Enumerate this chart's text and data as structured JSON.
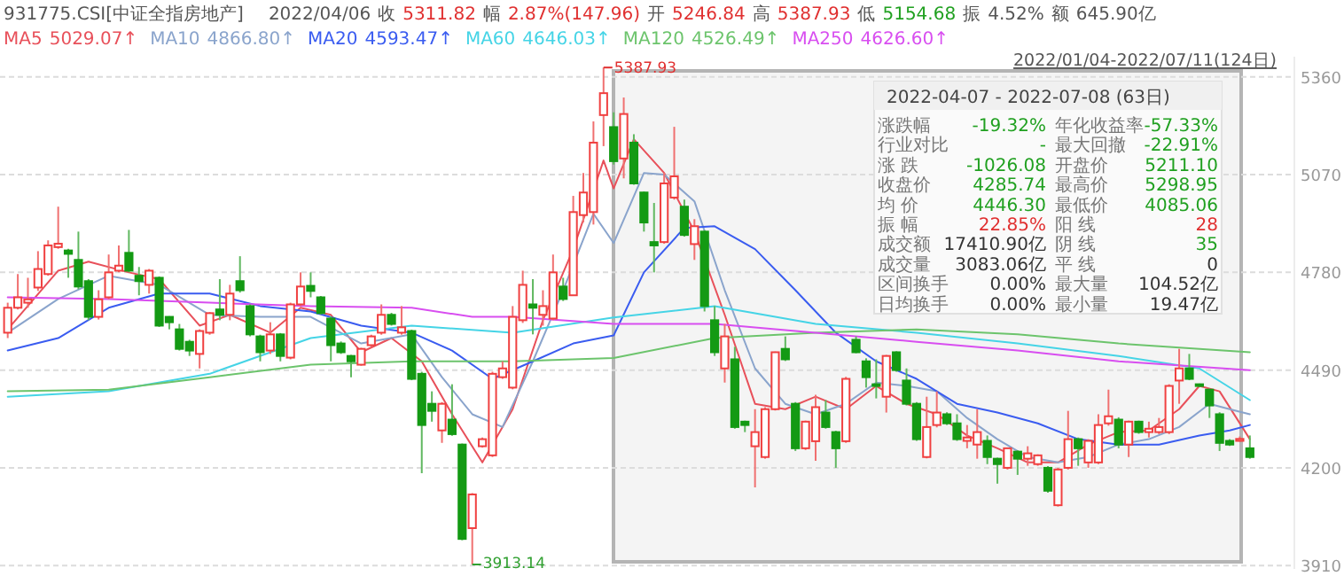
{
  "chart_data": {
    "type": "candlestick",
    "title": "931775.CSI[中证全指房地产]",
    "subtitle": "2022/04/06 收 5311.82 幅 2.87%(147.96) 开 5246.84 高 5387.93 低 5154.68 振 4.52% 额 645.90亿",
    "categories": [
      null,
      null,
      null,
      null,
      null,
      null,
      null,
      null,
      null,
      null,
      null,
      null,
      null,
      null,
      null,
      null,
      null,
      null,
      null,
      null,
      null,
      null,
      null,
      null,
      null,
      null,
      null,
      null,
      null,
      null,
      null,
      null,
      null,
      null,
      null,
      null,
      null,
      null,
      null,
      null,
      null,
      null,
      null,
      null,
      null,
      null,
      null,
      null,
      null,
      null,
      null,
      null,
      null,
      null,
      null,
      null,
      null,
      null,
      null,
      null,
      null,
      null,
      null,
      null,
      null,
      null,
      null,
      null,
      null,
      null,
      null,
      null,
      null,
      null,
      null,
      null,
      null,
      null,
      null,
      null,
      null,
      null,
      null,
      null,
      null,
      null,
      null,
      null,
      null,
      null,
      null,
      null,
      null,
      null,
      null,
      null,
      null,
      null,
      null,
      null,
      null,
      null,
      null,
      null,
      null,
      null,
      null,
      null,
      null,
      null,
      null,
      null,
      null,
      null,
      null,
      null,
      null,
      null,
      null,
      null,
      null,
      null,
      null,
      null
    ],
    "ohlc": [
      [
        4601,
        4690,
        4585,
        4675
      ],
      [
        4675,
        4775,
        4670,
        4706
      ],
      [
        4690,
        4764,
        4675,
        4700
      ],
      [
        4735,
        4843,
        4725,
        4790
      ],
      [
        4775,
        4875,
        4770,
        4860
      ],
      [
        4855,
        4975,
        4850,
        4865
      ],
      [
        4845,
        4850,
        4764,
        4835
      ],
      [
        4817,
        4901,
        4730,
        4738
      ],
      [
        4754,
        4760,
        4638,
        4648
      ],
      [
        4648,
        4727,
        4640,
        4700
      ],
      [
        4706,
        4833,
        4700,
        4780
      ],
      [
        4785,
        4860,
        4780,
        4800
      ],
      [
        4838,
        4906,
        4780,
        4785
      ],
      [
        4770,
        4796,
        4712,
        4754
      ],
      [
        4743,
        4790,
        4717,
        4785
      ],
      [
        4764,
        4768,
        4618,
        4622
      ],
      [
        4648,
        4650,
        4611,
        4632
      ],
      [
        4611,
        4627,
        4548,
        4553
      ],
      [
        4574,
        4580,
        4532,
        4548
      ],
      [
        4538,
        4611,
        4495,
        4606
      ],
      [
        4601,
        4662,
        4595,
        4659
      ],
      [
        4670,
        4760,
        4638,
        4654
      ],
      [
        4654,
        4743,
        4638,
        4717
      ],
      [
        4754,
        4828,
        4720,
        4727
      ],
      [
        4680,
        4685,
        4590,
        4596
      ],
      [
        4590,
        4595,
        4516,
        4543
      ],
      [
        4548,
        4632,
        4538,
        4596
      ],
      [
        4596,
        4600,
        4516,
        4532
      ],
      [
        4527,
        4690,
        4522,
        4685
      ],
      [
        4685,
        4780,
        4680,
        4738
      ],
      [
        4740,
        4780,
        4706,
        4725
      ],
      [
        4706,
        4710,
        4655,
        4659
      ],
      [
        4643,
        4650,
        4516,
        4564
      ],
      [
        4569,
        4575,
        4538,
        4543
      ],
      [
        4532,
        4535,
        4469,
        4516
      ],
      [
        4506,
        4556,
        4503,
        4553
      ],
      [
        4564,
        4595,
        4560,
        4590
      ],
      [
        4601,
        4685,
        4595,
        4654
      ],
      [
        4654,
        4660,
        4622,
        4627
      ],
      [
        4601,
        4680,
        4595,
        4617
      ],
      [
        4606,
        4610,
        4460,
        4464
      ],
      [
        4479,
        4485,
        4184,
        4327
      ],
      [
        4390,
        4427,
        4337,
        4369
      ],
      [
        4311,
        4395,
        4274,
        4390
      ],
      [
        4343,
        4448,
        4295,
        4300
      ],
      [
        4269,
        4272,
        3985,
        3989
      ],
      [
        4021,
        4125,
        3913.14,
        4121
      ],
      [
        4264,
        4290,
        4260,
        4285
      ],
      [
        4237,
        4485,
        4232,
        4479
      ],
      [
        4469,
        4516,
        4464,
        4495
      ],
      [
        4438,
        4680,
        4433,
        4648
      ],
      [
        4638,
        4785,
        4630,
        4743
      ],
      [
        4685,
        4760,
        4596,
        4675
      ],
      [
        4654,
        4727,
        4622,
        4680
      ],
      [
        4643,
        4833,
        4638,
        4780
      ],
      [
        4738,
        4764,
        4695,
        4701
      ],
      [
        4712,
        5007,
        4710,
        4959
      ],
      [
        4950,
        5075,
        4928,
        5017
      ],
      [
        4959,
        5228,
        4922,
        5165
      ],
      [
        5246.84,
        5387.93,
        5154.68,
        5311.82
      ],
      [
        5211.1,
        5255,
        5100,
        5110
      ],
      [
        5118,
        5298.95,
        5059,
        5250
      ],
      [
        5165,
        5190,
        5040,
        5044
      ],
      [
        5017,
        5020,
        4901,
        4928
      ],
      [
        4870,
        4986,
        4780,
        4860
      ],
      [
        4870,
        5075,
        4865,
        5044
      ],
      [
        5002,
        5212,
        4996,
        5065
      ],
      [
        4975,
        4996,
        4886,
        4891
      ],
      [
        4864,
        4938,
        4817,
        4917
      ],
      [
        4901,
        4905,
        4664,
        4680
      ],
      [
        4638,
        4680,
        4532,
        4543
      ],
      [
        4495,
        4627,
        4453,
        4590
      ],
      [
        4522,
        4559,
        4316,
        4321
      ],
      [
        4337,
        4340,
        4306,
        4327
      ],
      [
        4264,
        4374,
        4142,
        4306
      ],
      [
        4232,
        4380,
        4227,
        4374
      ],
      [
        4374,
        4545,
        4370,
        4543
      ],
      [
        4553,
        4590,
        4517,
        4522
      ],
      [
        4390,
        4395,
        4250,
        4258
      ],
      [
        4258,
        4340,
        4253,
        4337
      ],
      [
        4279,
        4417,
        4221,
        4380
      ],
      [
        4364,
        4401,
        4316,
        4321
      ],
      [
        4306,
        4310,
        4200,
        4258
      ],
      [
        4279,
        4470,
        4274,
        4464
      ],
      [
        4580,
        4590,
        4540,
        4543
      ],
      [
        4516,
        4525,
        4438,
        4469
      ],
      [
        4448,
        4522,
        4406,
        4443
      ],
      [
        4411,
        4535,
        4364,
        4532
      ],
      [
        4543,
        4546,
        4485,
        4490
      ],
      [
        4459,
        4495,
        4385,
        4390
      ],
      [
        4390,
        4395,
        4280,
        4285
      ],
      [
        4232,
        4411,
        4228,
        4321
      ],
      [
        4327,
        4427,
        4320,
        4364
      ],
      [
        4359,
        4365,
        4327,
        4332
      ],
      [
        4332,
        4359,
        4280,
        4285
      ],
      [
        4280,
        4327,
        4258,
        4290
      ],
      [
        4269,
        4374,
        4227,
        4306
      ],
      [
        4280,
        4296,
        4211,
        4232
      ],
      [
        4227,
        4230,
        4153,
        4211
      ],
      [
        4200,
        4260,
        4195,
        4258
      ],
      [
        4248,
        4252,
        4179,
        4227
      ],
      [
        4227,
        4264,
        4206,
        4243
      ],
      [
        4211,
        4240,
        4206,
        4237
      ],
      [
        4200,
        4205,
        4126,
        4132
      ],
      [
        4089,
        4200,
        4085.06,
        4195
      ],
      [
        4200,
        4369,
        4195,
        4285
      ],
      [
        4285,
        4290,
        4206,
        4258
      ],
      [
        4216,
        4285,
        4200,
        4280
      ],
      [
        4216,
        4359,
        4211,
        4327
      ],
      [
        4332,
        4432,
        4325,
        4353
      ],
      [
        4343,
        4350,
        4258,
        4269
      ],
      [
        4269,
        4340,
        4232,
        4337
      ],
      [
        4337,
        4340,
        4301,
        4306
      ],
      [
        4306,
        4337,
        4290,
        4316
      ],
      [
        4306,
        4348,
        4300,
        4321
      ],
      [
        4306,
        4448,
        4300,
        4443
      ],
      [
        4459,
        4553,
        4390,
        4495
      ],
      [
        4495,
        4538,
        4460,
        4464
      ],
      [
        4448,
        4450,
        4440,
        4443
      ],
      [
        4432,
        4435,
        4348,
        4385
      ],
      [
        4359,
        4365,
        4250,
        4274
      ],
      [
        4280,
        4285,
        4265,
        4269
      ],
      [
        4280,
        4293,
        4278,
        4285.74
      ],
      [
        4258,
        4296,
        4227,
        4232
      ]
    ],
    "series": [
      {
        "name": "MA5",
        "type": "line",
        "color": "#e8505a",
        "values": [
          4611,
          null,
          null,
          null,
          null,
          4785,
          null,
          null,
          4812,
          null,
          null,
          null,
          4780,
          null,
          null,
          4760,
          null,
          null,
          null,
          4622,
          null,
          null,
          4654,
          null,
          null,
          null,
          4601,
          null,
          null,
          4675,
          null,
          null,
          4654,
          null,
          null,
          4543,
          null,
          null,
          4585,
          null,
          null,
          4516,
          null,
          null,
          4359,
          null,
          null,
          4216,
          null,
          null,
          4374,
          null,
          null,
          4638,
          null,
          null,
          4849,
          null,
          null,
          5112,
          5029,
          null,
          5175,
          null,
          null,
          5075,
          null,
          null,
          4901,
          null,
          null,
          4654,
          null,
          null,
          4390,
          null,
          null,
          4374,
          null,
          null,
          4411,
          null,
          null,
          4374,
          null,
          null,
          4443,
          null,
          null,
          4390,
          null,
          null,
          4359,
          null,
          null,
          4296,
          null,
          null,
          4258,
          null,
          null,
          4216,
          null,
          null,
          4216,
          null,
          null,
          4269,
          null,
          null,
          4306,
          null,
          null,
          4311,
          null,
          null,
          4374,
          null,
          4443,
          null,
          4427,
          null,
          null,
          4285
        ]
      },
      {
        "name": "MA10",
        "type": "line",
        "color": "#8aa4cc",
        "values": [
          4601,
          null,
          null,
          null,
          null,
          4701,
          null,
          null,
          null,
          null,
          4770,
          null,
          null,
          null,
          null,
          4743,
          null,
          null,
          null,
          null,
          4654,
          null,
          null,
          null,
          null,
          4648,
          null,
          null,
          null,
          null,
          4648,
          null,
          null,
          null,
          null,
          4569,
          null,
          null,
          null,
          null,
          4596,
          null,
          null,
          4469,
          null,
          null,
          4359,
          null,
          null,
          4321,
          null,
          null,
          4516,
          null,
          null,
          4727,
          null,
          null,
          4954,
          null,
          4867,
          null,
          null,
          5075,
          null,
          5070,
          null,
          null,
          4991,
          null,
          null,
          4727,
          null,
          null,
          4495,
          null,
          null,
          4390,
          null,
          null,
          4359,
          null,
          null,
          4390,
          null,
          null,
          4453,
          null,
          null,
          4443,
          null,
          null,
          4427,
          null,
          null,
          4348,
          null,
          null,
          4285,
          null,
          null,
          4232,
          null,
          null,
          4216,
          null,
          null,
          4232,
          null,
          null,
          4269,
          null,
          null,
          4285,
          null,
          null,
          4321,
          null,
          null,
          4390,
          null,
          4374,
          null,
          4359
        ]
      },
      {
        "name": "MA20",
        "type": "line",
        "color": "#3a5cf0",
        "values": [
          4548,
          null,
          null,
          null,
          null,
          4585,
          null,
          null,
          null,
          null,
          4675,
          null,
          null,
          null,
          null,
          4717,
          null,
          null,
          null,
          null,
          4717,
          null,
          null,
          null,
          null,
          4680,
          null,
          null,
          null,
          null,
          4664,
          null,
          null,
          null,
          null,
          4622,
          null,
          null,
          null,
          null,
          4601,
          null,
          null,
          null,
          4548,
          null,
          null,
          null,
          4464,
          null,
          null,
          null,
          4516,
          null,
          null,
          null,
          4569,
          null,
          null,
          null,
          4593,
          null,
          null,
          4780,
          null,
          null,
          null,
          4912,
          null,
          null,
          4917,
          null,
          null,
          null,
          4849,
          null,
          null,
          null,
          4727,
          null,
          null,
          null,
          4601,
          null,
          null,
          null,
          4516,
          null,
          null,
          null,
          4464,
          null,
          null,
          null,
          4390,
          null,
          null,
          null,
          4364,
          null,
          null,
          null,
          4332,
          null,
          null,
          null,
          4285,
          null,
          null,
          null,
          4269,
          null,
          null,
          null,
          4269,
          null,
          null,
          null,
          4296,
          null,
          null,
          4311,
          null,
          4327
        ]
      },
      {
        "name": "MA60",
        "type": "line",
        "color": "#45d4e6",
        "values": [
          4411,
          null,
          null,
          null,
          null,
          null,
          null,
          null,
          null,
          null,
          4427,
          null,
          null,
          null,
          null,
          null,
          null,
          null,
          null,
          null,
          4479,
          null,
          null,
          null,
          null,
          null,
          null,
          null,
          null,
          null,
          4585,
          null,
          null,
          null,
          null,
          null,
          null,
          null,
          null,
          null,
          4622,
          null,
          null,
          null,
          null,
          null,
          null,
          null,
          null,
          null,
          4601,
          null,
          null,
          null,
          null,
          null,
          null,
          null,
          null,
          null,
          4646,
          null,
          null,
          null,
          null,
          null,
          null,
          null,
          null,
          null,
          4680,
          null,
          null,
          null,
          null,
          null,
          null,
          null,
          null,
          null,
          4627,
          null,
          null,
          null,
          null,
          null,
          null,
          null,
          null,
          null,
          4601,
          null,
          null,
          null,
          null,
          null,
          null,
          null,
          null,
          null,
          4569,
          null,
          null,
          null,
          null,
          null,
          null,
          null,
          null,
          null,
          4532,
          null,
          null,
          null,
          null,
          null,
          null,
          null,
          4495,
          null,
          null,
          null,
          null,
          4401
        ]
      },
      {
        "name": "MA120",
        "type": "line",
        "color": "#6cc46c",
        "values": [
          4427,
          null,
          null,
          null,
          null,
          null,
          null,
          null,
          null,
          null,
          4432,
          null,
          null,
          null,
          null,
          null,
          null,
          null,
          null,
          null,
          4469,
          null,
          null,
          null,
          null,
          null,
          null,
          null,
          null,
          null,
          4506,
          null,
          null,
          null,
          null,
          null,
          null,
          null,
          null,
          null,
          4516,
          null,
          null,
          null,
          null,
          null,
          null,
          null,
          null,
          null,
          4516,
          null,
          null,
          null,
          null,
          null,
          null,
          null,
          null,
          null,
          4526,
          null,
          null,
          null,
          null,
          null,
          null,
          null,
          null,
          null,
          4585,
          null,
          null,
          null,
          null,
          null,
          null,
          null,
          null,
          null,
          4601,
          null,
          null,
          null,
          null,
          null,
          null,
          null,
          null,
          null,
          4611,
          null,
          null,
          null,
          null,
          null,
          null,
          null,
          null,
          null,
          4596,
          null,
          null,
          null,
          null,
          null,
          null,
          null,
          null,
          null,
          4569,
          null,
          null,
          null,
          null,
          null,
          null,
          null,
          null,
          null,
          null,
          null,
          null,
          4543
        ]
      },
      {
        "name": "MA250",
        "type": "line",
        "color": "#d84ef0",
        "values": [
          4706,
          null,
          null,
          null,
          null,
          null,
          null,
          null,
          null,
          null,
          4701,
          null,
          null,
          null,
          null,
          null,
          null,
          null,
          null,
          null,
          4690,
          null,
          null,
          null,
          null,
          null,
          null,
          null,
          null,
          null,
          4680,
          null,
          null,
          null,
          null,
          null,
          null,
          null,
          null,
          null,
          4675,
          null,
          null,
          null,
          null,
          null,
          4648,
          null,
          null,
          null,
          4648,
          null,
          null,
          null,
          null,
          null,
          null,
          null,
          null,
          null,
          4627,
          null,
          null,
          null,
          null,
          null,
          null,
          null,
          null,
          null,
          4627,
          null,
          null,
          null,
          null,
          null,
          null,
          null,
          null,
          null,
          4601,
          null,
          null,
          null,
          null,
          null,
          null,
          null,
          null,
          null,
          4574,
          null,
          null,
          null,
          null,
          null,
          null,
          null,
          null,
          null,
          4548,
          null,
          null,
          null,
          null,
          null,
          null,
          null,
          null,
          null,
          4516,
          null,
          null,
          null,
          null,
          null,
          null,
          null,
          null,
          null,
          null,
          null,
          null,
          4490
        ]
      }
    ],
    "ylim": [
      3900,
      5420
    ],
    "yticks": [
      3910,
      4200,
      4490,
      4780,
      5070,
      5360
    ],
    "grid": "y",
    "tick_labels": "y",
    "annotations": [
      "2022/01/04-2022/07/11(124日)",
      "5029.07↑",
      "4866.80↑",
      "4593.47↑",
      "4646.03↑",
      "4526.49↑",
      "4626.60↑",
      "2022-04-07 - 2022-07-08 (63日)",
      "涨跌幅",
      "-19.32%",
      "年化收益率",
      "-57.33%",
      "行业对比",
      "-",
      "最大回撤",
      "-22.91%",
      "涨 跌",
      "-1026.08",
      "开盘价",
      "5211.10",
      "收盘价",
      "4285.74",
      "最高价",
      "5298.95",
      "均 价",
      "4446.30",
      "最低价",
      "4085.06",
      "振 幅",
      "22.85%",
      "阳 线",
      "28",
      "成交额",
      "17410.90亿",
      "阴 线",
      "35",
      "成交量",
      "3083.06亿",
      "平 线",
      "0",
      "区间换手",
      "0.00%",
      "最大量",
      "104.52亿",
      "日均换手",
      "0.00%",
      "最小量",
      "19.47亿",
      "5387.93",
      "3913.14"
    ]
  }
}
